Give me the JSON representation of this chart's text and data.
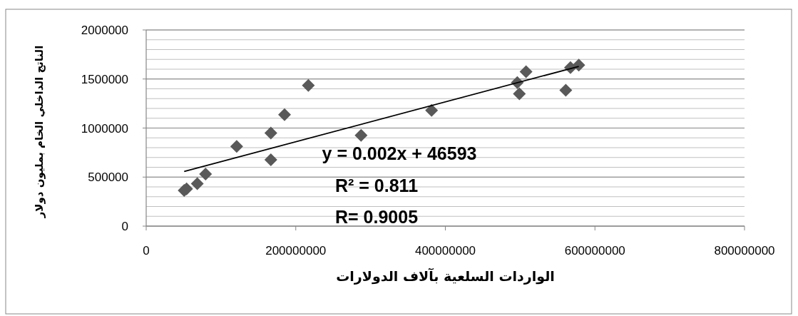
{
  "chart_data": {
    "type": "scatter",
    "xlabel": "الواردات السلعية بآلاف الدولارات",
    "ylabel": "الناتج الداخلي الخام بمليون دولار",
    "xlim": [
      0,
      800000000
    ],
    "xticks": [
      0,
      200000000,
      400000000,
      600000000,
      800000000
    ],
    "ylim": [
      0,
      2000000
    ],
    "yticks": [
      0,
      500000,
      1000000,
      1500000,
      2000000
    ],
    "grid": "y",
    "marker": "diamond",
    "series": [
      {
        "color": "#595959",
        "x": [
          50800000,
          54000000,
          68300000,
          79400000,
          121000000,
          166700000,
          166700000,
          185000000,
          216800000,
          287300000,
          381600000,
          507900000,
          496200000,
          499000000,
          561000000,
          567300000,
          578400000
        ],
        "values": [
          364000,
          380000,
          433000,
          531000,
          812000,
          676000,
          950000,
          1137000,
          1435000,
          926000,
          1180000,
          1575000,
          1464000,
          1350000,
          1386000,
          1617000,
          1641000
        ]
      },
      {
        "type": "line",
        "color": "#000000",
        "marker": "none",
        "x": [
          50800000,
          578400000
        ],
        "values": [
          557000,
          1629000
        ]
      }
    ],
    "annotations": [
      "y = 0.002x + 46593",
      "R² = 0.811",
      "R= 0.9005"
    ]
  }
}
